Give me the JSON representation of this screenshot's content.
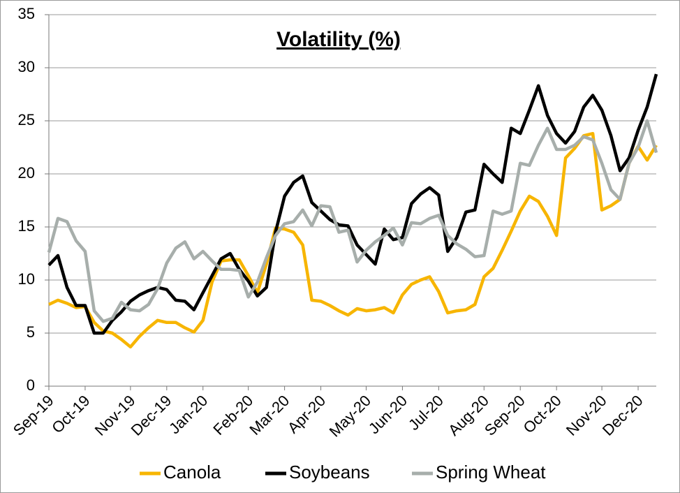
{
  "chart_data": {
    "type": "line",
    "title": "Volatility (%)",
    "categories": [
      "Sep-19",
      null,
      null,
      null,
      "Oct-19",
      null,
      null,
      null,
      null,
      "Nov-19",
      null,
      null,
      null,
      "Dec-19",
      null,
      null,
      null,
      "Jan-20",
      null,
      null,
      null,
      null,
      "Feb-20",
      null,
      null,
      null,
      "Mar-20",
      null,
      null,
      null,
      "Apr-20",
      null,
      null,
      null,
      null,
      "May-20",
      null,
      null,
      null,
      "Jun-20",
      null,
      null,
      null,
      "Jul-20",
      null,
      null,
      null,
      null,
      "Aug-20",
      null,
      null,
      null,
      "Sep-20",
      null,
      null,
      null,
      "Oct-20",
      null,
      null,
      null,
      null,
      "Nov-20",
      null,
      null,
      null,
      "Dec-20",
      null,
      null
    ],
    "series": [
      {
        "name": "Canola",
        "color": "#f7b500",
        "values": [
          7.7,
          8.1,
          7.8,
          7.4,
          7.5,
          6.0,
          5.2,
          5.0,
          4.4,
          3.7,
          4.7,
          5.5,
          6.2,
          6.0,
          6.0,
          5.5,
          5.1,
          6.2,
          9.8,
          11.8,
          11.9,
          11.9,
          10.4,
          8.8,
          11.5,
          14.9,
          14.8,
          14.5,
          13.3,
          8.1,
          8.0,
          7.6,
          7.1,
          6.7,
          7.3,
          7.1,
          7.2,
          7.4,
          6.9,
          8.6,
          9.6,
          10.0,
          10.3,
          8.9,
          6.9,
          7.1,
          7.2,
          7.7,
          10.3,
          11.1,
          12.8,
          14.6,
          16.5,
          17.9,
          17.4,
          16.0,
          14.2,
          21.5,
          22.4,
          23.6,
          23.8,
          16.6,
          17.0,
          17.6,
          21.0,
          22.6,
          21.3,
          22.7
        ]
      },
      {
        "name": "Soybeans",
        "color": "#000000",
        "values": [
          11.4,
          12.3,
          9.3,
          7.6,
          7.6,
          5.0,
          5.0,
          6.2,
          7.0,
          8.0,
          8.6,
          9.0,
          9.3,
          9.1,
          8.1,
          8.0,
          7.2,
          8.8,
          10.4,
          12.0,
          12.5,
          11.0,
          9.9,
          8.5,
          9.3,
          14.5,
          17.9,
          19.2,
          19.8,
          17.3,
          16.5,
          15.7,
          15.2,
          15.1,
          13.3,
          12.4,
          11.5,
          14.8,
          13.8,
          14.0,
          17.2,
          18.1,
          18.7,
          18.0,
          12.7,
          14.0,
          16.4,
          16.6,
          20.9,
          20.0,
          19.2,
          24.3,
          23.8,
          26.0,
          28.3,
          25.5,
          23.8,
          22.9,
          24.0,
          26.3,
          27.4,
          26.0,
          23.6,
          20.3,
          21.5,
          24.1,
          26.3,
          29.4
        ]
      },
      {
        "name": "Spring Wheat",
        "color": "#a7aeab",
        "values": [
          12.6,
          15.8,
          15.5,
          13.7,
          12.7,
          7.1,
          6.1,
          6.4,
          7.9,
          7.2,
          7.1,
          7.7,
          9.2,
          11.6,
          13.0,
          13.6,
          12.0,
          12.7,
          11.8,
          11.0,
          11.0,
          10.9,
          8.4,
          9.8,
          12.1,
          14.2,
          15.3,
          15.5,
          16.6,
          15.1,
          17.0,
          16.9,
          14.5,
          14.7,
          11.7,
          12.8,
          13.6,
          14.2,
          14.9,
          13.3,
          15.4,
          15.3,
          15.8,
          16.1,
          14.2,
          13.4,
          12.9,
          12.2,
          12.3,
          16.5,
          16.2,
          16.5,
          21.0,
          20.8,
          22.7,
          24.3,
          22.3,
          22.3,
          22.7,
          23.5,
          23.2,
          21.0,
          18.5,
          17.6,
          21.0,
          22.5,
          25.0,
          22.0
        ]
      }
    ],
    "ylim": [
      0,
      35
    ],
    "yticks": [
      0,
      5,
      10,
      15,
      20,
      25,
      30,
      35
    ],
    "grid": true,
    "legend": "bottom"
  }
}
